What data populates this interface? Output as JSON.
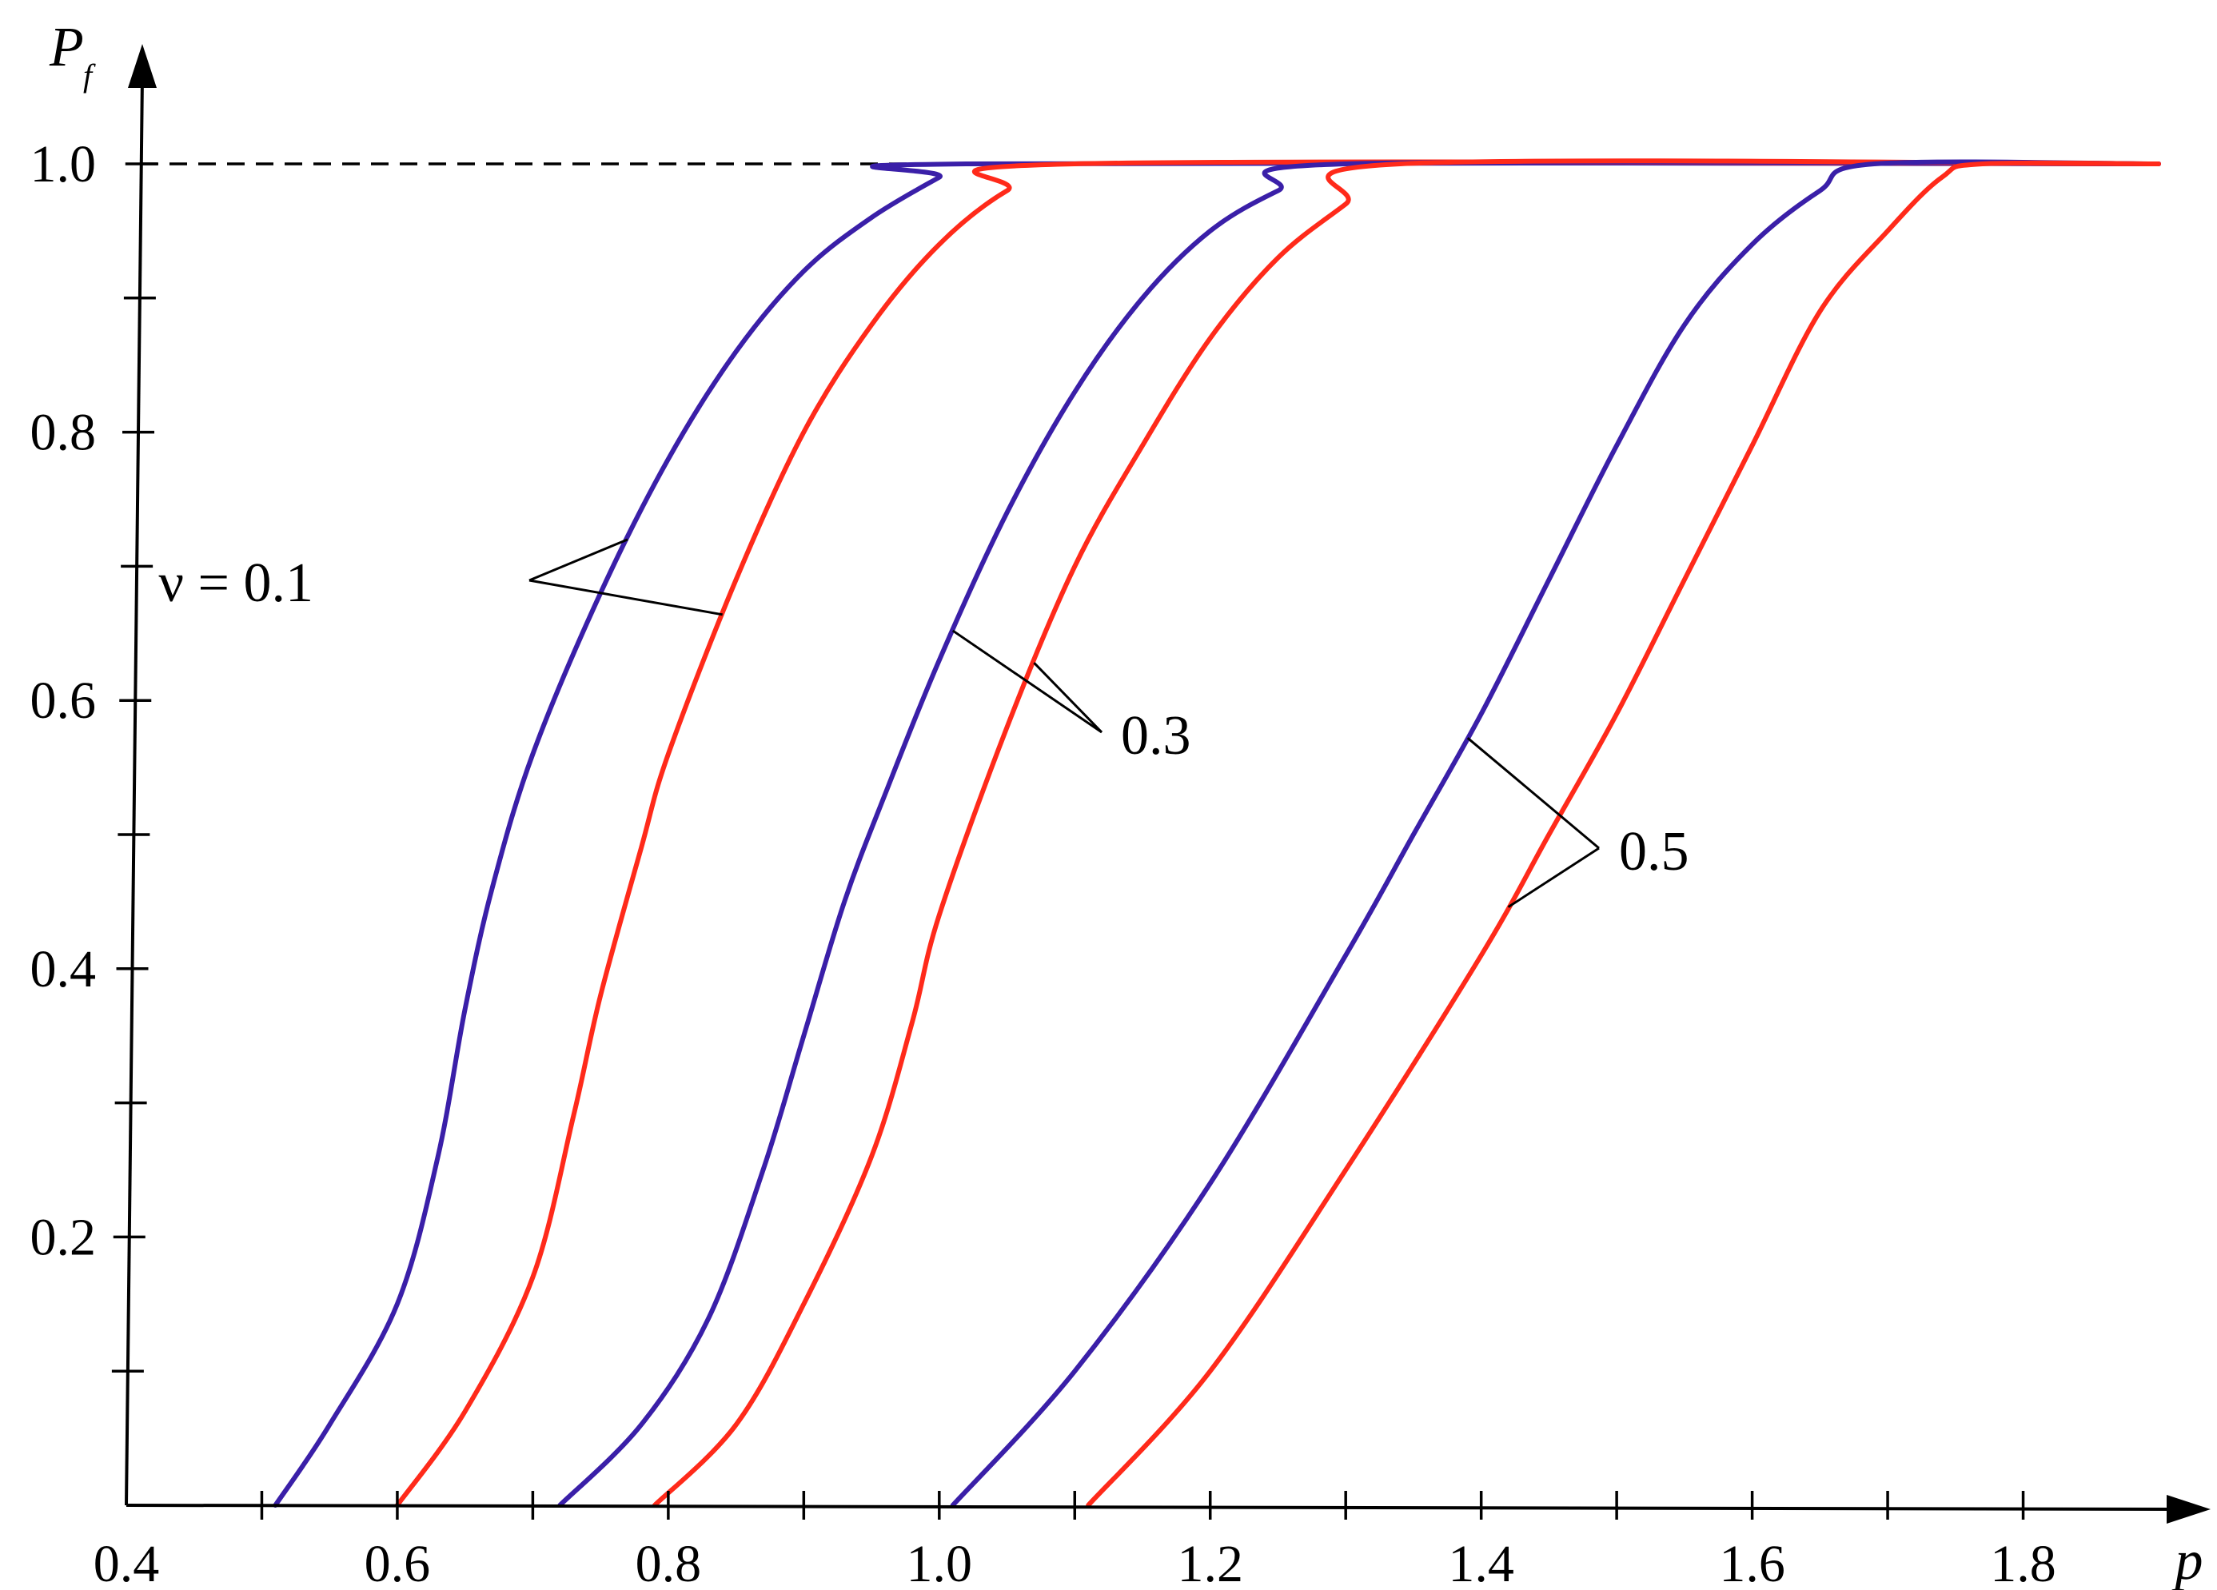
{
  "chart_data": {
    "type": "line",
    "xlabel": "p",
    "ylabel": "P",
    "ylabel_subscript": "f",
    "xlim": [
      0.4,
      1.9
    ],
    "ylim": [
      0,
      1.0
    ],
    "x_tick_labels": [
      "0.4",
      "0.6",
      "0.8",
      "1.0",
      "1.2",
      "1.4",
      "1.6",
      "1.8"
    ],
    "y_tick_labels": [
      "0.2",
      "0.4",
      "0.6",
      "0.8",
      "1.0"
    ],
    "x_minor_ticks": [
      0.5,
      0.6,
      0.7,
      0.8,
      0.9,
      1.0,
      1.1,
      1.2,
      1.3,
      1.4,
      1.5,
      1.6,
      1.7,
      1.8
    ],
    "y_minor_ticks": [
      0.1,
      0.2,
      0.3,
      0.4,
      0.5,
      0.6,
      0.7,
      0.8,
      0.9
    ],
    "reference_line": {
      "y": 1.0,
      "style": "dashed"
    },
    "grid": false,
    "colors": {
      "blue": "#3a1fa8",
      "red": "#ff2a1a"
    },
    "annotations": [
      {
        "text": "ν = 0.1",
        "series": [
          0,
          1
        ]
      },
      {
        "text": "0.3",
        "series": [
          2,
          3
        ]
      },
      {
        "text": "0.5",
        "series": [
          4,
          5
        ]
      }
    ],
    "series": [
      {
        "color": "blue",
        "x": [
          0.51,
          0.55,
          0.6,
          0.63,
          0.65,
          0.67,
          0.7,
          0.75,
          0.8,
          0.85,
          0.9,
          0.95,
          1.0,
          1.02,
          1.9
        ],
        "y": [
          0.0,
          0.06,
          0.15,
          0.26,
          0.37,
          0.46,
          0.56,
          0.68,
          0.78,
          0.86,
          0.92,
          0.96,
          0.99,
          1.0,
          1.0
        ]
      },
      {
        "color": "red",
        "x": [
          0.6,
          0.65,
          0.7,
          0.73,
          0.75,
          0.78,
          0.8,
          0.85,
          0.9,
          0.95,
          1.0,
          1.05,
          1.1,
          1.9
        ],
        "y": [
          0.0,
          0.07,
          0.17,
          0.29,
          0.38,
          0.49,
          0.56,
          0.69,
          0.8,
          0.88,
          0.94,
          0.98,
          1.0,
          1.0
        ]
      },
      {
        "color": "blue",
        "x": [
          0.72,
          0.78,
          0.83,
          0.87,
          0.9,
          0.93,
          0.96,
          1.0,
          1.05,
          1.1,
          1.15,
          1.2,
          1.25,
          1.3,
          1.9
        ],
        "y": [
          0.0,
          0.06,
          0.14,
          0.25,
          0.35,
          0.45,
          0.53,
          0.63,
          0.74,
          0.83,
          0.9,
          0.95,
          0.98,
          1.0,
          1.0
        ]
      },
      {
        "color": "red",
        "x": [
          0.79,
          0.85,
          0.9,
          0.95,
          0.98,
          1.0,
          1.05,
          1.1,
          1.15,
          1.2,
          1.25,
          1.3,
          1.34,
          1.9
        ],
        "y": [
          0.0,
          0.06,
          0.15,
          0.26,
          0.36,
          0.44,
          0.58,
          0.7,
          0.79,
          0.87,
          0.93,
          0.97,
          1.0,
          1.0
        ]
      },
      {
        "color": "blue",
        "x": [
          1.01,
          1.1,
          1.2,
          1.3,
          1.35,
          1.4,
          1.45,
          1.5,
          1.55,
          1.6,
          1.65,
          1.69,
          1.9
        ],
        "y": [
          0.0,
          0.1,
          0.24,
          0.41,
          0.5,
          0.59,
          0.69,
          0.79,
          0.88,
          0.94,
          0.98,
          1.0,
          1.0
        ]
      },
      {
        "color": "red",
        "x": [
          1.11,
          1.2,
          1.3,
          1.4,
          1.45,
          1.5,
          1.55,
          1.6,
          1.65,
          1.7,
          1.74,
          1.77,
          1.9
        ],
        "y": [
          0.0,
          0.1,
          0.25,
          0.41,
          0.5,
          0.59,
          0.69,
          0.79,
          0.89,
          0.95,
          0.99,
          1.0,
          1.0
        ]
      }
    ]
  }
}
